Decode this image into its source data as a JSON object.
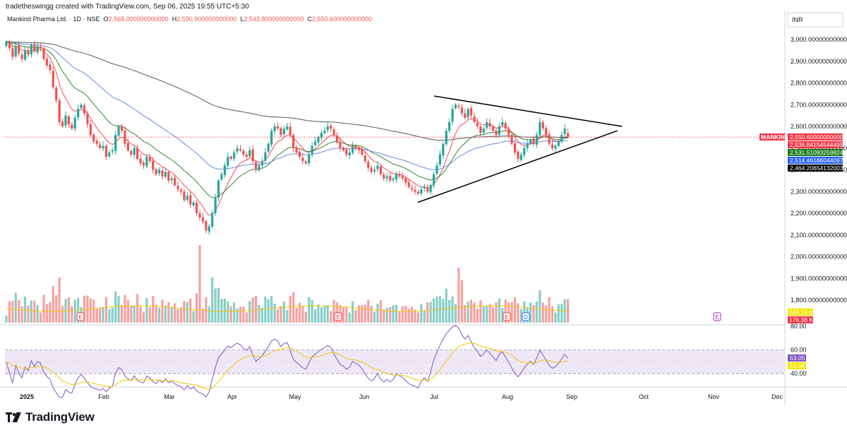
{
  "header": {
    "caption": "tradetheswingg created with TradingView.com, Sep 06, 2025 19:55 UTC+5:30",
    "symbol": "Mankind Pharma Ltd. · 1D · NSE",
    "o_key": "O",
    "o_val": "2,568.000000000000",
    "h_key": "H",
    "h_val": "2,590.900000000000",
    "l_key": "L",
    "l_val": "2,543.800000000000",
    "c_key": "C",
    "c_val": "2,550.600000000000"
  },
  "brand": {
    "name": "TradingView",
    "logo_icon": "tradingview-logo-icon"
  },
  "price_axis": {
    "currency": "INR",
    "ticks": [
      "3,000.000000000000",
      "2,900.000000000000",
      "2,800.000000000000",
      "2,700.000000000000",
      "2,600.000000000000",
      "2,500.000000000000",
      "2,400.000000000000",
      "2,300.000000000000",
      "2,200.000000000000",
      "2,100.000000000000",
      "2,000.000000000000",
      "1,900.000000000000",
      "1,800.000000000000"
    ],
    "tags": [
      {
        "label": "MANKIND",
        "value": "2,550.600000000000",
        "color": "#f23645"
      },
      {
        "value": "2,536.841545444954",
        "color": "#f23645"
      },
      {
        "value": "2,531.510932598240",
        "color": "#1b7a1b"
      },
      {
        "value": "2,514.461860440970",
        "color": "#2962ff"
      },
      {
        "value": "2,464.206541320030",
        "color": "#000000"
      }
    ],
    "volume_tags": [
      {
        "value": "544.16 K",
        "color": "#f7e600"
      },
      {
        "value": "176.38 K",
        "color": "#f23645"
      }
    ]
  },
  "rsi_axis": {
    "ticks": [
      "80.00",
      "60.00",
      "40.00"
    ],
    "tags": [
      {
        "value": "53.05",
        "color": "#7e57c2"
      },
      {
        "value": "51.06",
        "color": "#f7e600"
      }
    ]
  },
  "time_axis": [
    "2025",
    "Feb",
    "Mar",
    "Apr",
    "May",
    "Jun",
    "Jul",
    "Aug",
    "Sep",
    "Oct",
    "Nov",
    "Dec"
  ],
  "event_markers": [
    {
      "letter": "E",
      "color": "#f23645"
    },
    {
      "letter": "E",
      "color": "#f23645"
    },
    {
      "letter": "E",
      "color": "#f23645"
    },
    {
      "letter": "D",
      "color": "#2962ff"
    },
    {
      "letter": "E",
      "color": "#9c27b0"
    }
  ],
  "colors": {
    "up": "#26a69a",
    "down": "#ef5350",
    "ema_fast": "#f23645",
    "ema_mid": "#1b7a1b",
    "ema_slow": "#5b7be0",
    "ma_long": "#555555",
    "rsi_line": "#7e57c2",
    "rsi_ma": "#f7c600",
    "rsi_band": "#ede7f6"
  },
  "chart_data": {
    "type": "candlestick",
    "title": "Mankind Pharma Ltd. · 1D · NSE",
    "ylim": [
      2100,
      3050
    ],
    "x_start": "2025-01-01",
    "x_end": "2025-12-31",
    "closes": [
      2990,
      2960,
      2920,
      2970,
      2935,
      2910,
      2950,
      2930,
      2975,
      2945,
      2970,
      2960,
      2910,
      2880,
      2860,
      2780,
      2720,
      2620,
      2600,
      2650,
      2610,
      2590,
      2640,
      2680,
      2700,
      2660,
      2610,
      2560,
      2530,
      2520,
      2500,
      2510,
      2460,
      2480,
      2490,
      2560,
      2600,
      2580,
      2520,
      2490,
      2470,
      2500,
      2450,
      2430,
      2420,
      2460,
      2440,
      2400,
      2380,
      2400,
      2370,
      2390,
      2350,
      2360,
      2330,
      2310,
      2300,
      2260,
      2280,
      2240,
      2250,
      2200,
      2180,
      2160,
      2120,
      2140,
      2200,
      2270,
      2350,
      2380,
      2420,
      2460,
      2450,
      2480,
      2500,
      2490,
      2470,
      2460,
      2490,
      2440,
      2400,
      2420,
      2440,
      2480,
      2520,
      2580,
      2600,
      2590,
      2560,
      2590,
      2600,
      2560,
      2500,
      2480,
      2460,
      2440,
      2430,
      2470,
      2510,
      2530,
      2550,
      2570,
      2580,
      2600,
      2590,
      2560,
      2530,
      2500,
      2490,
      2470,
      2480,
      2510,
      2500,
      2490,
      2470,
      2440,
      2410,
      2390,
      2400,
      2420,
      2380,
      2360,
      2370,
      2350,
      2360,
      2380,
      2370,
      2360,
      2340,
      2320,
      2310,
      2300,
      2290,
      2310,
      2320,
      2300,
      2330,
      2380,
      2420,
      2470,
      2520,
      2580,
      2620,
      2680,
      2700,
      2690,
      2660,
      2640,
      2680,
      2650,
      2620,
      2600,
      2570,
      2590,
      2620,
      2600,
      2580,
      2560,
      2600,
      2620,
      2590,
      2560,
      2520,
      2480,
      2450,
      2470,
      2500,
      2520,
      2540,
      2520,
      2560,
      2620,
      2590,
      2560,
      2520,
      2500,
      2510,
      2530,
      2560,
      2590,
      2551
    ],
    "volume": {
      "max_value": "544.16 K",
      "last_value": "176.38 K"
    },
    "rsi": {
      "latest": 53.05,
      "ma_latest": 51.06,
      "band": [
        40,
        60
      ],
      "ticks": [
        80,
        60,
        40
      ]
    },
    "moving_averages": [
      {
        "latest": 2536.841545444954,
        "color": "#f23645"
      },
      {
        "latest": 2531.51093259824,
        "color": "#1b7a1b"
      },
      {
        "latest": 2514.46186044097,
        "color": "#2962ff"
      },
      {
        "latest": 2464.20654132003,
        "color": "#000000"
      }
    ],
    "last_price": 2550.6,
    "trendlines": [
      {
        "from": {
          "date": "2025-07-01",
          "price": 2740
        },
        "to": {
          "date": "2025-09-22",
          "price": 2600
        }
      },
      {
        "from": {
          "date": "2025-06-24",
          "price": 2250
        },
        "to": {
          "date": "2025-09-20",
          "price": 2580
        }
      }
    ]
  }
}
